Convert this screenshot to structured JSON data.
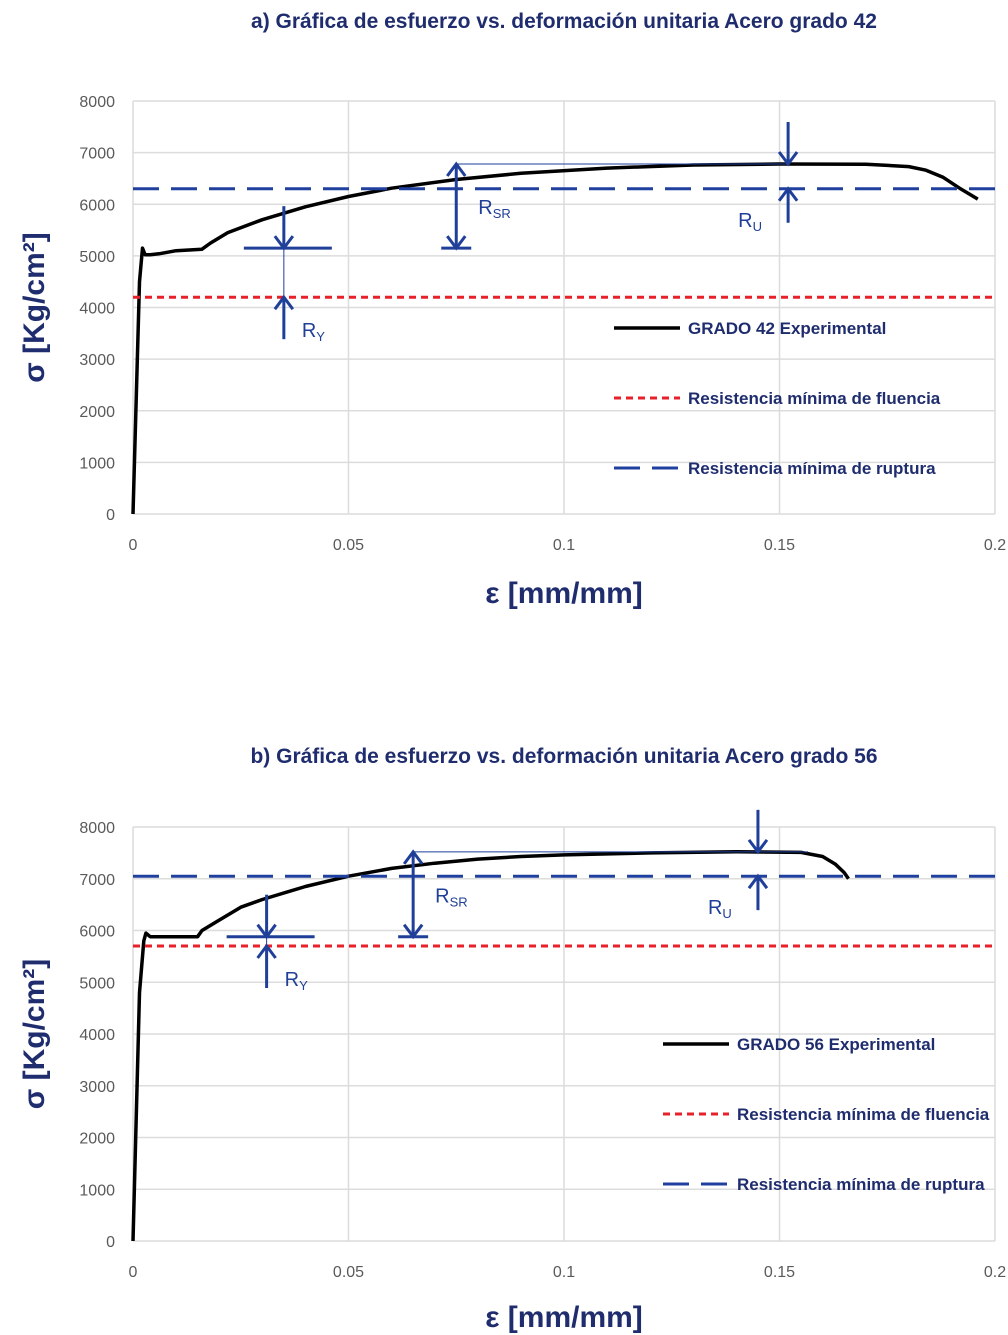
{
  "colors": {
    "curve": "#000000",
    "fluencia": "#e8202a",
    "ruptura": "#2040a0",
    "annotation": "#1f3f99",
    "grid": "#dcdcdc",
    "title": "#1f2d6e"
  },
  "chart_data": [
    {
      "type": "line",
      "title": "a) Gráfica de esfuerzo vs. deformación unitaria Acero grado 42",
      "xlabel": "ε [mm/mm]",
      "ylabel": "σ [Kg/cm²]",
      "xlim": [
        0,
        0.2
      ],
      "ylim": [
        0,
        8000
      ],
      "x_ticks": [
        "0",
        "0.05",
        "0.1",
        "0.15",
        "0.2"
      ],
      "y_ticks": [
        "0",
        "1000",
        "2000",
        "3000",
        "4000",
        "5000",
        "6000",
        "7000",
        "8000"
      ],
      "grid": true,
      "legend_position": "right-middle",
      "series": [
        {
          "name": "GRADO 42 Experimental",
          "style": "solid",
          "x": [
            0,
            0.0015,
            0.0022,
            0.0028,
            0.004,
            0.006,
            0.01,
            0.016,
            0.018,
            0.022,
            0.03,
            0.04,
            0.05,
            0.06,
            0.075,
            0.09,
            0.11,
            0.13,
            0.15,
            0.17,
            0.18,
            0.184,
            0.188,
            0.192,
            0.196
          ],
          "y": [
            0,
            4500,
            5150,
            5020,
            5020,
            5040,
            5100,
            5130,
            5250,
            5450,
            5700,
            5950,
            6150,
            6310,
            6480,
            6600,
            6700,
            6760,
            6780,
            6775,
            6730,
            6660,
            6520,
            6300,
            6100
          ]
        },
        {
          "name": "Resistencia mínima de fluencia",
          "style": "dotted",
          "x": [
            0,
            0.2
          ],
          "y": [
            4200,
            4200
          ]
        },
        {
          "name": "Resistencia mínima de ruptura",
          "style": "dashed",
          "x": [
            0,
            0.2
          ],
          "y": [
            6300,
            6300
          ]
        }
      ],
      "annotations": [
        {
          "label": "R",
          "sub": "Y",
          "x": 0.035,
          "y_low": 4200,
          "y_high": 5150
        },
        {
          "label": "R",
          "sub": "SR",
          "x": 0.075,
          "y_low": 5150,
          "y_high": 6780
        },
        {
          "label": "R",
          "sub": "U",
          "x": 0.152,
          "y_low": 6300,
          "y_high": 6780
        }
      ]
    },
    {
      "type": "line",
      "title": "b) Gráfica de esfuerzo vs. deformación unitaria Acero grado 56",
      "xlabel": "ε [mm/mm]",
      "ylabel": "σ [Kg/cm²]",
      "xlim": [
        0,
        0.2
      ],
      "ylim": [
        0,
        8000
      ],
      "x_ticks": [
        "0",
        "0.05",
        "0.1",
        "0.15",
        "0.2"
      ],
      "y_ticks": [
        "0",
        "1000",
        "2000",
        "3000",
        "4000",
        "5000",
        "6000",
        "7000",
        "8000"
      ],
      "grid": true,
      "legend_position": "right-middle",
      "series": [
        {
          "name": "GRADO 56 Experimental",
          "style": "solid",
          "x": [
            0,
            0.0015,
            0.0025,
            0.003,
            0.004,
            0.008,
            0.015,
            0.016,
            0.02,
            0.025,
            0.03,
            0.04,
            0.05,
            0.06,
            0.07,
            0.08,
            0.09,
            0.1,
            0.12,
            0.14,
            0.155,
            0.16,
            0.163,
            0.165,
            0.166
          ],
          "y": [
            0,
            4800,
            5800,
            5950,
            5880,
            5880,
            5880,
            6000,
            6200,
            6450,
            6600,
            6850,
            7050,
            7200,
            7300,
            7380,
            7430,
            7460,
            7500,
            7520,
            7510,
            7430,
            7280,
            7120,
            7000
          ]
        },
        {
          "name": "Resistencia mínima de fluencia",
          "style": "dotted",
          "x": [
            0,
            0.2
          ],
          "y": [
            5700,
            5700
          ]
        },
        {
          "name": "Resistencia mínima de ruptura",
          "style": "dashed",
          "x": [
            0,
            0.2
          ],
          "y": [
            7050,
            7050
          ]
        }
      ],
      "annotations": [
        {
          "label": "R",
          "sub": "Y",
          "x": 0.031,
          "y_low": 5700,
          "y_high": 5880
        },
        {
          "label": "R",
          "sub": "SR",
          "x": 0.065,
          "y_low": 5880,
          "y_high": 7520
        },
        {
          "label": "R",
          "sub": "U",
          "x": 0.145,
          "y_low": 7050,
          "y_high": 7520
        }
      ]
    }
  ]
}
